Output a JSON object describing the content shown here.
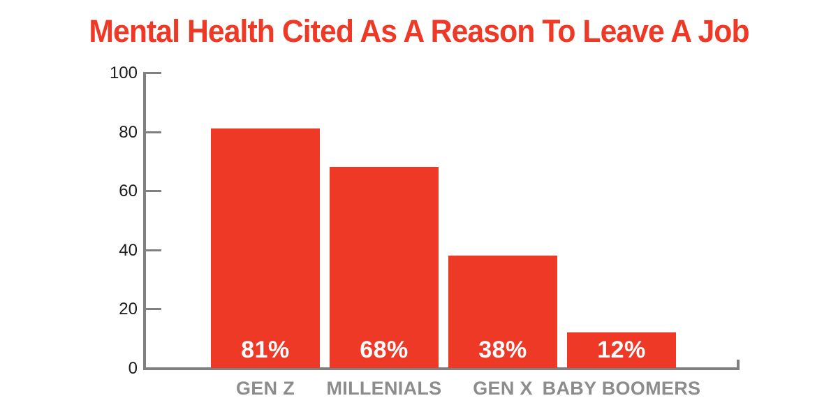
{
  "chart_data": {
    "type": "bar",
    "title": "Mental Health Cited As A Reason To Leave A Job",
    "categories": [
      "GEN Z",
      "MILLENIALS",
      "GEN X",
      "BABY BOOMERS"
    ],
    "values": [
      81,
      68,
      38,
      12
    ],
    "bar_labels": [
      "81%",
      "68%",
      "38%",
      "12%"
    ],
    "xlabel": "",
    "ylabel": "",
    "ylim": [
      0,
      100
    ],
    "yticks": [
      0,
      20,
      40,
      60,
      80,
      100
    ],
    "grid": false,
    "legend": false,
    "colors": {
      "bar": "#EE3926",
      "title": "#EE3926",
      "axis": "#808080",
      "tick_label": "#1A1A1A",
      "category_label": "#8C8C8C",
      "value_label": "#FFFFFF",
      "background": "#FFFFFF"
    }
  }
}
